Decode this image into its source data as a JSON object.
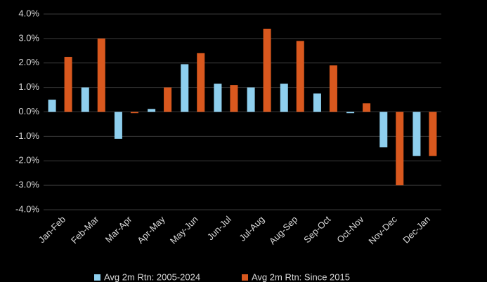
{
  "chart_data": {
    "type": "bar",
    "categories": [
      "Jan-Feb",
      "Feb-Mar",
      "Mar-Apr",
      "Apr-May",
      "May-Jun",
      "Jun-Jul",
      "Jul-Aug",
      "Aug-Sep",
      "Sep-Oct",
      "Oct-Nov",
      "Nov-Dec",
      "Dec-Jan"
    ],
    "series": [
      {
        "name": "Avg 2m Rtn: 2005-2024",
        "color": "#8ecfee",
        "values": [
          0.5,
          1.0,
          -1.1,
          0.12,
          1.95,
          1.15,
          1.0,
          1.15,
          0.75,
          -0.05,
          -1.45,
          -1.8
        ]
      },
      {
        "name": "Avg 2m Rtn: Since 2015",
        "color": "#d9581e",
        "values": [
          2.25,
          3.0,
          -0.05,
          1.0,
          2.4,
          1.1,
          3.4,
          2.9,
          1.9,
          0.35,
          -3.0,
          -1.8
        ]
      }
    ],
    "ylim": [
      -4,
      4
    ],
    "yticks": [
      {
        "value": -4,
        "label": "-4.0%"
      },
      {
        "value": -3,
        "label": "-3.0%"
      },
      {
        "value": -2,
        "label": "-2.0%"
      },
      {
        "value": -1,
        "label": "-1.0%"
      },
      {
        "value": 0,
        "label": "0.0%"
      },
      {
        "value": 1,
        "label": "1.0%"
      },
      {
        "value": 2,
        "label": "2.0%"
      },
      {
        "value": 3,
        "label": "3.0%"
      },
      {
        "value": 4,
        "label": "4.0%"
      }
    ],
    "grid": true,
    "legend": "bottom"
  }
}
